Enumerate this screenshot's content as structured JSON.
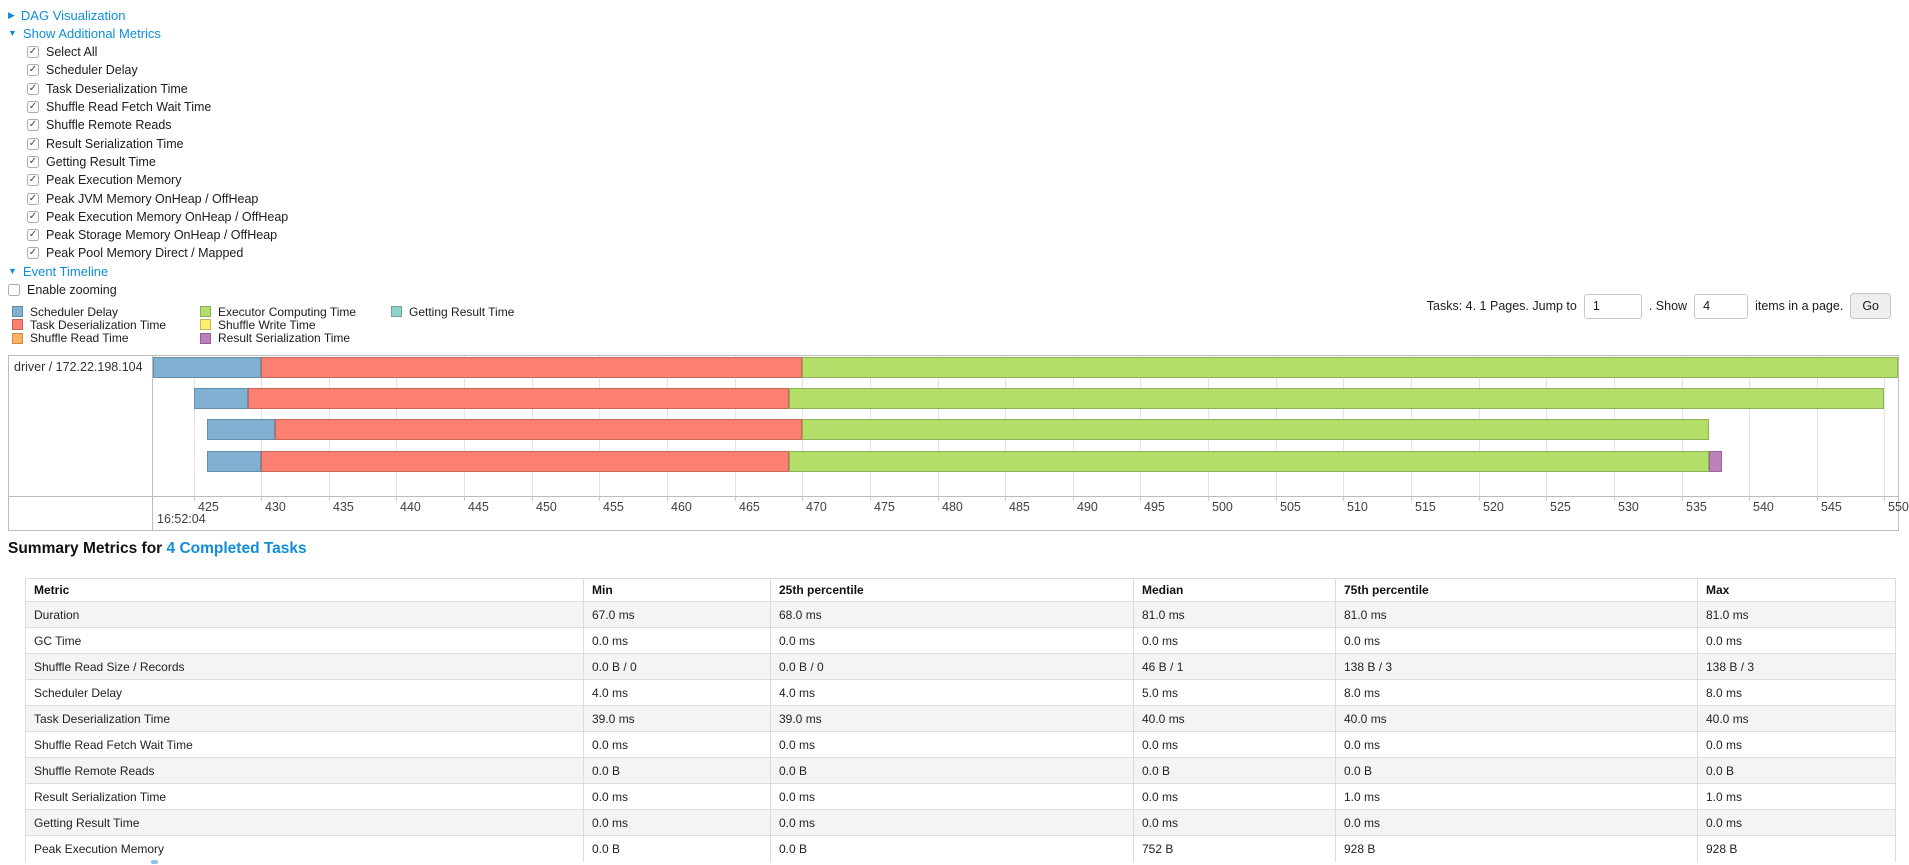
{
  "colors": {
    "link": "#0d8ed9"
  },
  "controls": {
    "dag": {
      "label": "DAG Visualization",
      "state": "collapsed"
    },
    "show_additional_metrics": {
      "label": "Show Additional Metrics",
      "state": "expanded"
    },
    "metric_checkboxes": [
      {
        "label": "Select All",
        "checked": true
      },
      {
        "label": "Scheduler Delay",
        "checked": true
      },
      {
        "label": "Task Deserialization Time",
        "checked": true
      },
      {
        "label": "Shuffle Read Fetch Wait Time",
        "checked": true
      },
      {
        "label": "Shuffle Remote Reads",
        "checked": true
      },
      {
        "label": "Result Serialization Time",
        "checked": true
      },
      {
        "label": "Getting Result Time",
        "checked": true
      },
      {
        "label": "Peak Execution Memory",
        "checked": true
      },
      {
        "label": "Peak JVM Memory OnHeap / OffHeap",
        "checked": true
      },
      {
        "label": "Peak Execution Memory OnHeap / OffHeap",
        "checked": true
      },
      {
        "label": "Peak Storage Memory OnHeap / OffHeap",
        "checked": true
      },
      {
        "label": "Peak Pool Memory Direct / Mapped",
        "checked": true
      }
    ],
    "event_timeline": {
      "label": "Event Timeline",
      "state": "expanded"
    },
    "enable_zooming": {
      "label": "Enable zooming",
      "checked": false
    }
  },
  "legend": {
    "columns": [
      [
        {
          "label": "Scheduler Delay",
          "color": "#80B1D3"
        },
        {
          "label": "Task Deserialization Time",
          "color": "#FB8072"
        },
        {
          "label": "Shuffle Read Time",
          "color": "#FDB462"
        }
      ],
      [
        {
          "label": "Executor Computing Time",
          "color": "#B3DE69"
        },
        {
          "label": "Shuffle Write Time",
          "color": "#FFED6F"
        },
        {
          "label": "Result Serialization Time",
          "color": "#BC80BD"
        }
      ],
      [
        {
          "label": "Getting Result Time",
          "color": "#8DD3C7"
        }
      ]
    ]
  },
  "pagination": {
    "tasks_text": "Tasks: 4. 1 Pages. Jump to",
    "jump_value": "1",
    "show_text": ". Show",
    "show_value": "4",
    "items_text": "items in a page.",
    "go_label": "Go"
  },
  "chart_data": {
    "type": "timeline",
    "section_title": "Event Timeline",
    "row_label": "driver / 172.22.198.104",
    "x_axis": {
      "unit": "ms within second 16:52:04",
      "base_time_label": "16:52:04",
      "tick_start": 425,
      "tick_end": 550,
      "tick_step": 5,
      "xlim": [
        422,
        551
      ],
      "grid": true
    },
    "colors": {
      "Scheduler Delay": "#80B1D3",
      "Task Deserialization Time": "#FB8072",
      "Shuffle Read Time": "#FDB462",
      "Executor Computing Time": "#B3DE69",
      "Shuffle Write Time": "#FFED6F",
      "Result Serialization Time": "#BC80BD",
      "Getting Result Time": "#8DD3C7"
    },
    "tasks": [
      {
        "executor": "driver / 172.22.198.104",
        "launch_ms": 422,
        "segments": [
          [
            "Scheduler Delay",
            8
          ],
          [
            "Task Deserialization Time",
            40
          ],
          [
            "Executor Computing Time",
            81
          ]
        ]
      },
      {
        "executor": "driver / 172.22.198.104",
        "launch_ms": 425,
        "segments": [
          [
            "Scheduler Delay",
            4
          ],
          [
            "Task Deserialization Time",
            40
          ],
          [
            "Executor Computing Time",
            81
          ]
        ]
      },
      {
        "executor": "driver / 172.22.198.104",
        "launch_ms": 426,
        "segments": [
          [
            "Scheduler Delay",
            5
          ],
          [
            "Task Deserialization Time",
            39
          ],
          [
            "Executor Computing Time",
            67
          ]
        ]
      },
      {
        "executor": "driver / 172.22.198.104",
        "launch_ms": 426,
        "segments": [
          [
            "Scheduler Delay",
            4
          ],
          [
            "Task Deserialization Time",
            39
          ],
          [
            "Executor Computing Time",
            68
          ],
          [
            "Result Serialization Time",
            1
          ]
        ]
      }
    ]
  },
  "summary": {
    "heading_prefix": "Summary Metrics for",
    "heading_link": "4 Completed Tasks",
    "table": {
      "headers": [
        "Metric",
        "Min",
        "25th percentile",
        "Median",
        "75th percentile",
        "Max"
      ],
      "rows": [
        [
          "Duration",
          "67.0 ms",
          "68.0 ms",
          "81.0 ms",
          "81.0 ms",
          "81.0 ms"
        ],
        [
          "GC Time",
          "0.0 ms",
          "0.0 ms",
          "0.0 ms",
          "0.0 ms",
          "0.0 ms"
        ],
        [
          "Shuffle Read Size / Records",
          "0.0 B / 0",
          "0.0 B / 0",
          "46 B / 1",
          "138 B / 3",
          "138 B / 3"
        ],
        [
          "Scheduler Delay",
          "4.0 ms",
          "4.0 ms",
          "5.0 ms",
          "8.0 ms",
          "8.0 ms"
        ],
        [
          "Task Deserialization Time",
          "39.0 ms",
          "39.0 ms",
          "40.0 ms",
          "40.0 ms",
          "40.0 ms"
        ],
        [
          "Shuffle Read Fetch Wait Time",
          "0.0 ms",
          "0.0 ms",
          "0.0 ms",
          "0.0 ms",
          "0.0 ms"
        ],
        [
          "Shuffle Remote Reads",
          "0.0 B",
          "0.0 B",
          "0.0 B",
          "0.0 B",
          "0.0 B"
        ],
        [
          "Result Serialization Time",
          "0.0 ms",
          "0.0 ms",
          "0.0 ms",
          "1.0 ms",
          "1.0 ms"
        ],
        [
          "Getting Result Time",
          "0.0 ms",
          "0.0 ms",
          "0.0 ms",
          "0.0 ms",
          "0.0 ms"
        ],
        [
          "Peak Execution Memory",
          "0.0 B",
          "0.0 B",
          "752 B",
          "928 B",
          "928 B"
        ]
      ]
    }
  }
}
